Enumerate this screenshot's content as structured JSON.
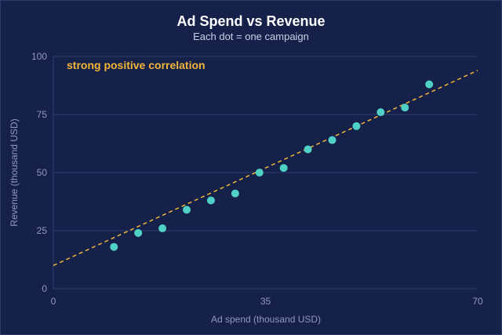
{
  "chart_data": {
    "type": "scatter",
    "title": "Ad Spend vs Revenue",
    "subtitle": "Each dot = one campaign",
    "xlabel": "Ad spend (thousand USD)",
    "ylabel": "Revenue (thousand USD)",
    "xlim": [
      0,
      70
    ],
    "ylim": [
      0,
      100
    ],
    "x_ticks": [
      0,
      35,
      70
    ],
    "y_ticks": [
      0,
      25,
      50,
      75,
      100
    ],
    "grid": "horizontal",
    "annotation": "strong positive correlation",
    "points": [
      {
        "x": 10,
        "y": 18
      },
      {
        "x": 14,
        "y": 24
      },
      {
        "x": 18,
        "y": 26
      },
      {
        "x": 22,
        "y": 34
      },
      {
        "x": 26,
        "y": 38
      },
      {
        "x": 30,
        "y": 41
      },
      {
        "x": 34,
        "y": 50
      },
      {
        "x": 38,
        "y": 52
      },
      {
        "x": 42,
        "y": 60
      },
      {
        "x": 46,
        "y": 64
      },
      {
        "x": 50,
        "y": 70
      },
      {
        "x": 54,
        "y": 76
      },
      {
        "x": 58,
        "y": 78
      },
      {
        "x": 62,
        "y": 88
      }
    ],
    "trendline": {
      "x": [
        0,
        70
      ],
      "y": [
        10,
        94
      ]
    },
    "colors": {
      "background": "#16214a",
      "points": "#4fd1c5",
      "trendline": "#f2b53a",
      "grid": "#2f3d73",
      "annotation": "#f2b53a"
    }
  }
}
